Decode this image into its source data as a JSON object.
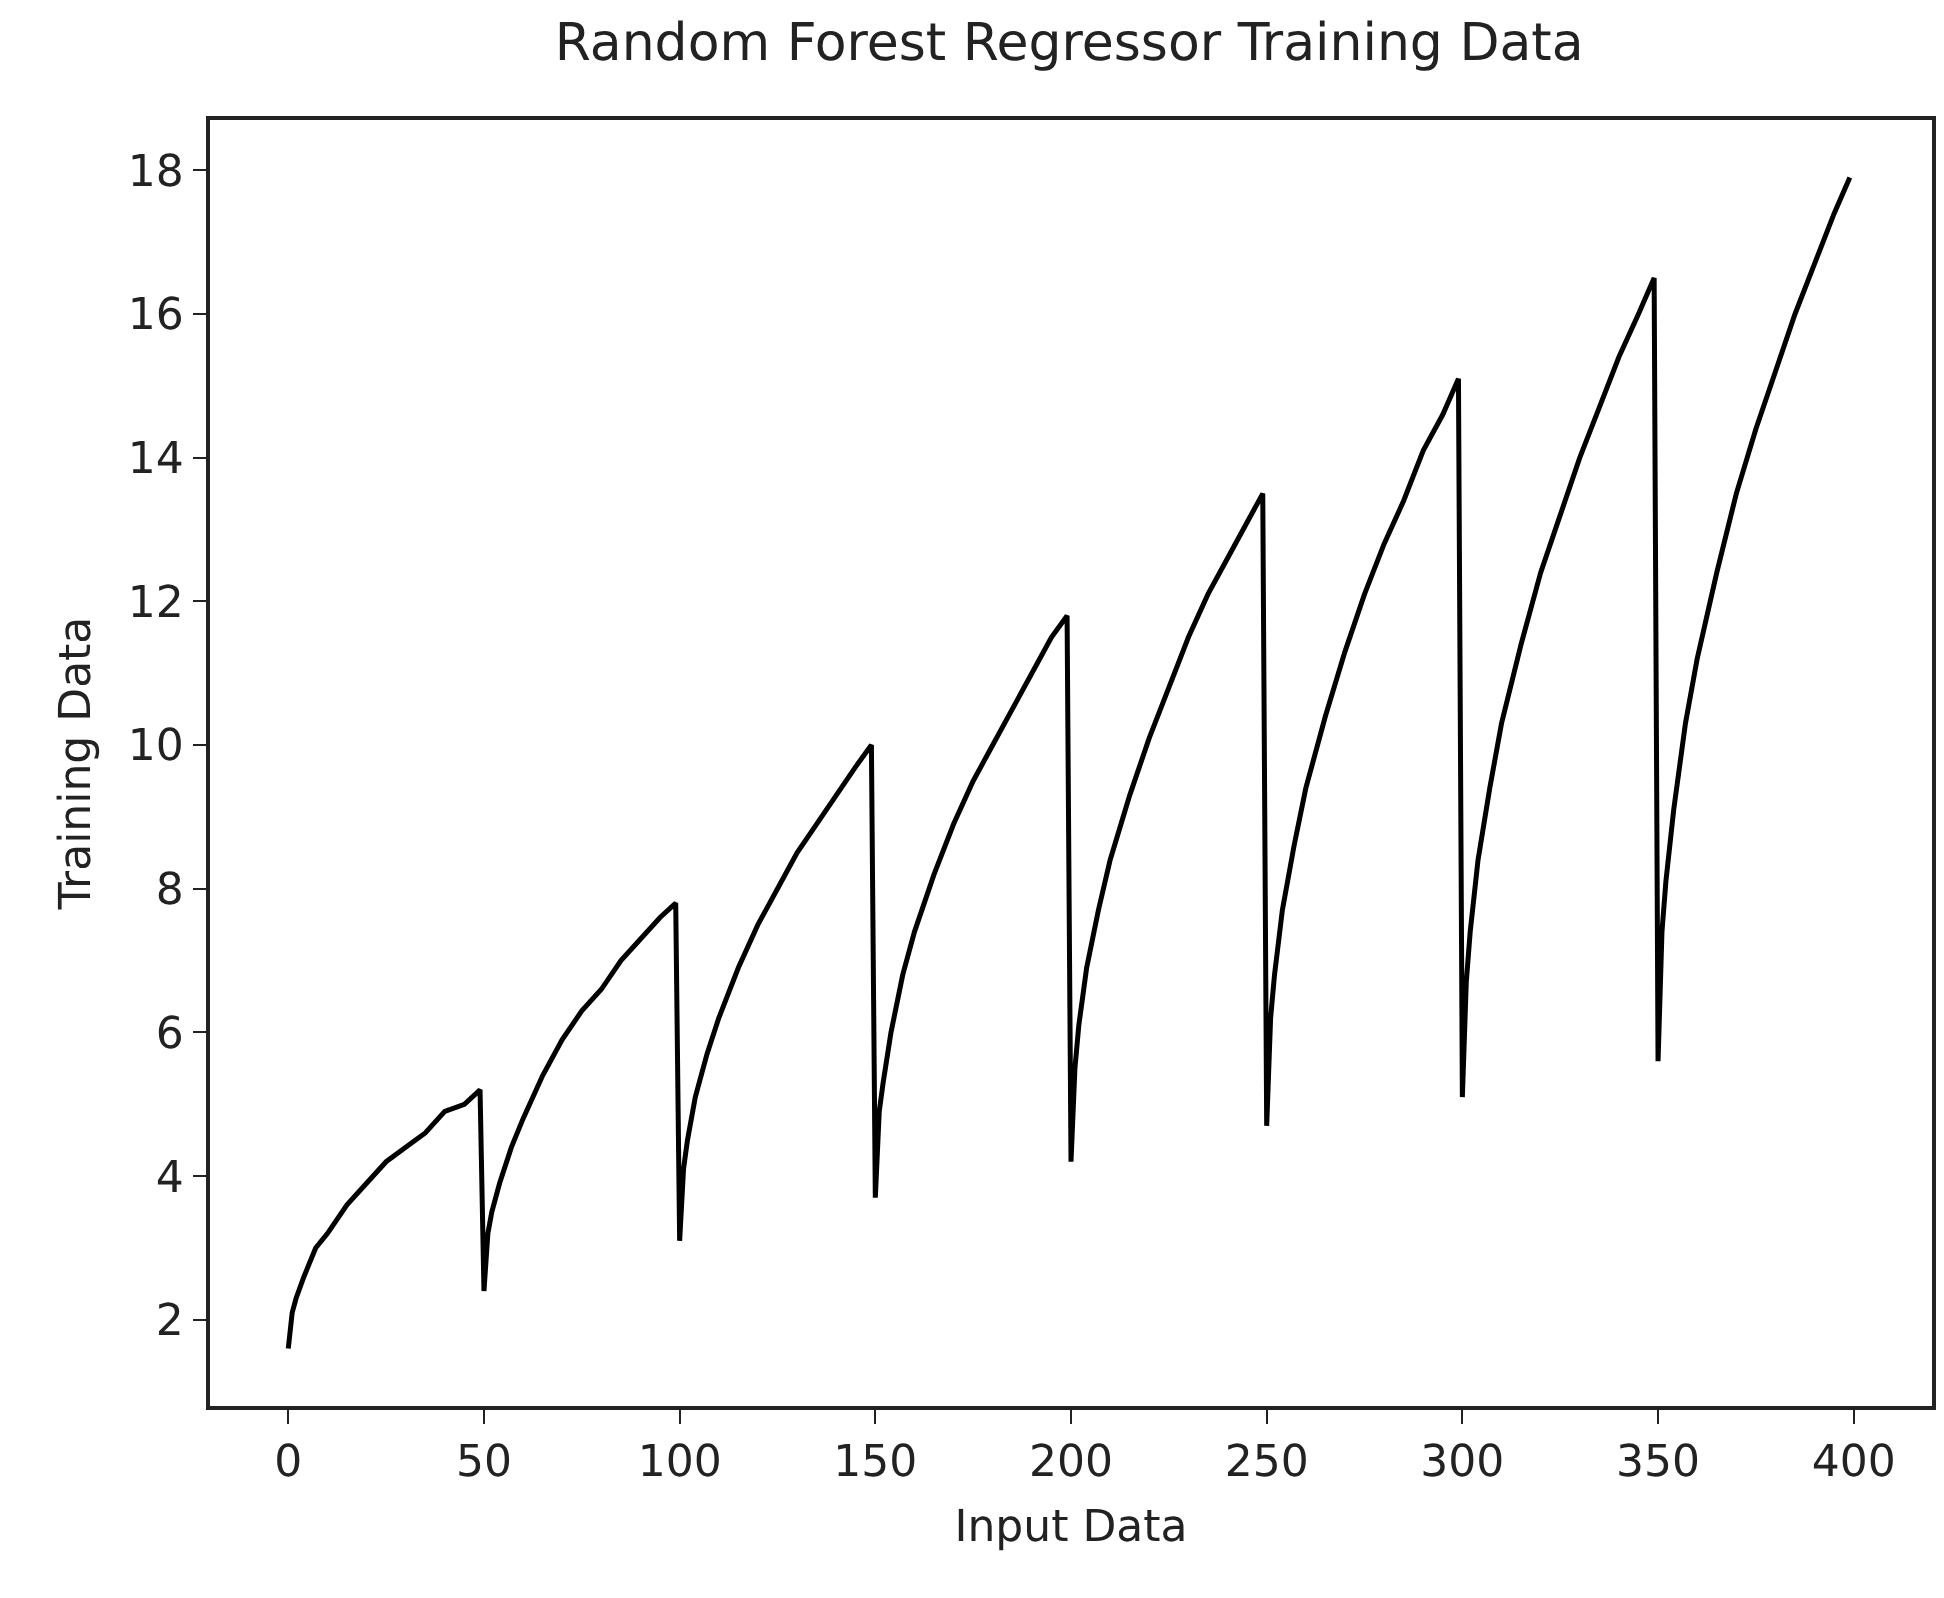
{
  "chart_data": {
    "type": "line",
    "title": "Random Forest Regressor Training Data",
    "xlabel": "Input Data",
    "ylabel": "Training Data",
    "x": [
      0,
      1,
      2,
      4,
      7,
      10,
      15,
      20,
      25,
      30,
      35,
      40,
      45,
      49,
      50,
      51,
      52,
      54,
      57,
      60,
      65,
      70,
      75,
      80,
      85,
      90,
      95,
      99,
      100,
      101,
      102,
      104,
      107,
      110,
      115,
      120,
      125,
      130,
      135,
      140,
      145,
      149,
      150,
      151,
      152,
      154,
      157,
      160,
      165,
      170,
      175,
      180,
      185,
      190,
      195,
      199,
      200,
      201,
      202,
      204,
      207,
      210,
      215,
      220,
      225,
      230,
      235,
      240,
      245,
      249,
      250,
      251,
      252,
      254,
      257,
      260,
      265,
      270,
      275,
      280,
      285,
      290,
      295,
      299,
      300,
      301,
      302,
      304,
      307,
      310,
      315,
      320,
      325,
      330,
      335,
      340,
      345,
      349,
      350,
      351,
      352,
      354,
      357,
      360,
      365,
      370,
      375,
      380,
      385,
      390,
      395,
      399
    ],
    "series": [
      {
        "color": "#000000",
        "values": [
          1.6,
          2.1,
          2.3,
          2.6,
          3.0,
          3.2,
          3.6,
          3.9,
          4.2,
          4.4,
          4.6,
          4.9,
          5.0,
          5.2,
          2.4,
          3.2,
          3.5,
          3.9,
          4.4,
          4.8,
          5.4,
          5.9,
          6.3,
          6.6,
          7.0,
          7.3,
          7.6,
          7.8,
          3.1,
          4.1,
          4.5,
          5.1,
          5.7,
          6.2,
          6.9,
          7.5,
          8.0,
          8.5,
          8.9,
          9.3,
          9.7,
          10.0,
          3.7,
          4.9,
          5.3,
          6.0,
          6.8,
          7.4,
          8.2,
          8.9,
          9.5,
          10.0,
          10.5,
          11.0,
          11.5,
          11.8,
          4.2,
          5.5,
          6.1,
          6.9,
          7.7,
          8.4,
          9.3,
          10.1,
          10.8,
          11.5,
          12.1,
          12.6,
          13.1,
          13.5,
          4.7,
          6.2,
          6.8,
          7.7,
          8.6,
          9.4,
          10.4,
          11.3,
          12.1,
          12.8,
          13.4,
          14.1,
          14.6,
          15.1,
          5.1,
          6.7,
          7.4,
          8.4,
          9.4,
          10.3,
          11.4,
          12.4,
          13.2,
          14.0,
          14.7,
          15.4,
          16.0,
          16.5,
          5.6,
          7.4,
          8.1,
          9.1,
          10.3,
          11.2,
          12.4,
          13.5,
          14.4,
          15.2,
          16.0,
          16.7,
          17.4,
          17.9
        ]
      }
    ],
    "xlim": [
      -20,
      420
    ],
    "ylim": [
      0.8,
      18.7
    ],
    "xticks": [
      0,
      50,
      100,
      150,
      200,
      250,
      300,
      350,
      400
    ],
    "yticks": [
      2,
      4,
      6,
      8,
      10,
      12,
      14,
      16,
      18
    ],
    "grid": false,
    "marker": "none",
    "line_style": "solid"
  }
}
